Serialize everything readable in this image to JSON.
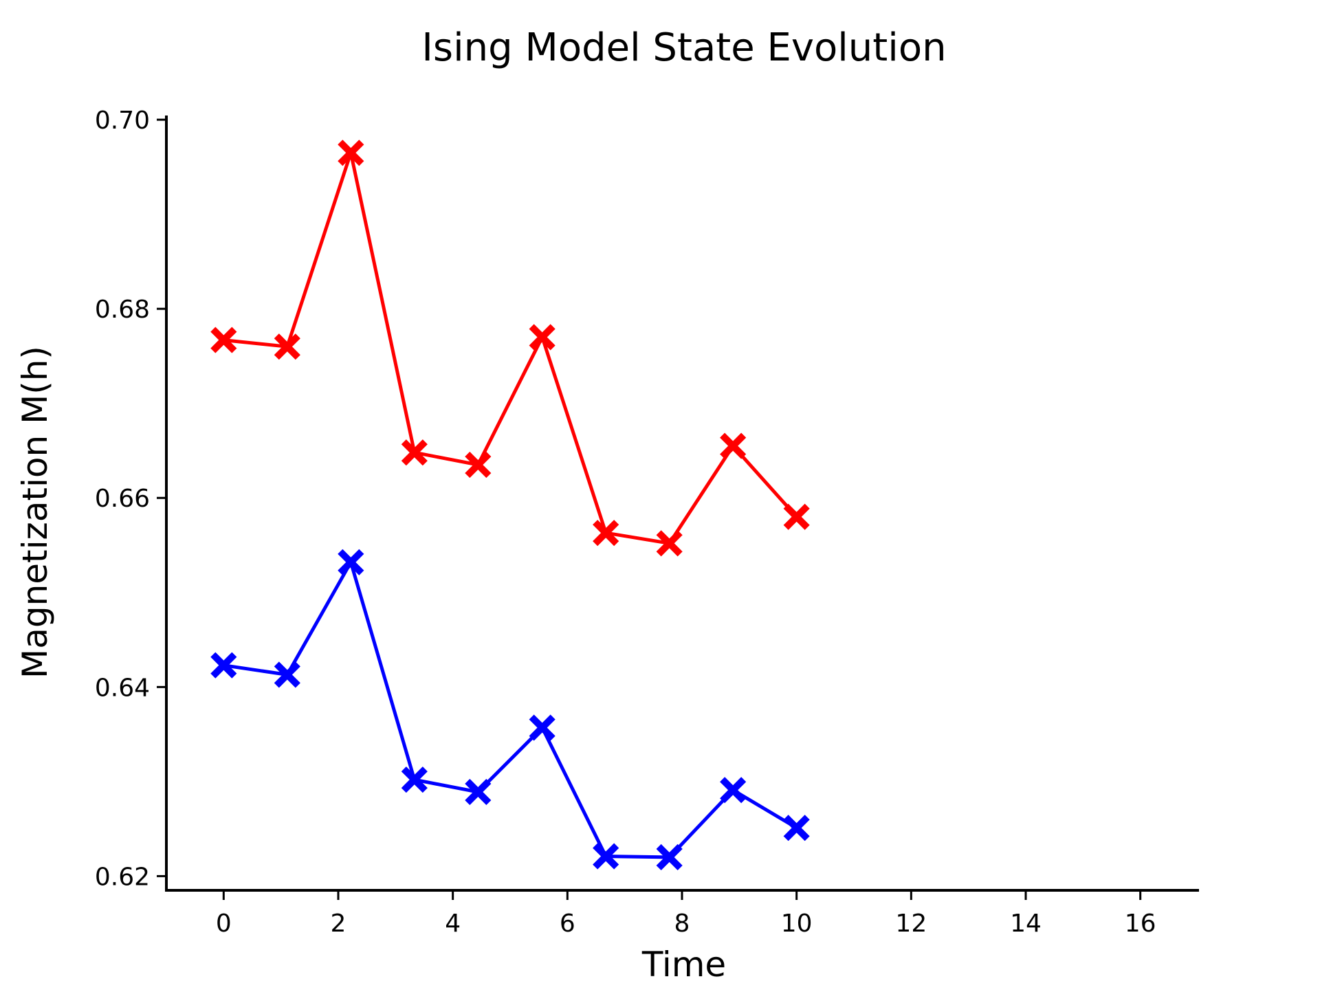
{
  "chart_data": {
    "type": "line",
    "title": "Ising Model State Evolution",
    "xlabel": "Time",
    "ylabel": "Magnetization M(h)",
    "xlim": [
      -1,
      17
    ],
    "ylim": [
      0.6185,
      0.7003
    ],
    "xticks": [
      0,
      2,
      4,
      6,
      8,
      10,
      12,
      14,
      16
    ],
    "yticks": [
      0.62,
      0.64,
      0.66,
      0.68,
      0.7
    ],
    "ytick_labels": [
      "0.62",
      "0.64",
      "0.66",
      "0.68",
      "0.70"
    ],
    "grid": false,
    "marker": "X",
    "series": [
      {
        "color": "#ff0000",
        "x": [
          0,
          1.11,
          2.22,
          3.33,
          4.44,
          5.56,
          6.67,
          7.78,
          8.89,
          10
        ],
        "y": [
          0.6767,
          0.676,
          0.6965,
          0.6648,
          0.6635,
          0.677,
          0.6563,
          0.6552,
          0.6655,
          0.658
        ]
      },
      {
        "color": "#0000ff",
        "x": [
          0,
          1.11,
          2.22,
          3.33,
          4.44,
          5.56,
          6.67,
          7.78,
          8.89,
          10
        ],
        "y": [
          0.6423,
          0.6413,
          0.6532,
          0.6302,
          0.6289,
          0.6357,
          0.6221,
          0.622,
          0.6291,
          0.6251
        ]
      }
    ]
  }
}
